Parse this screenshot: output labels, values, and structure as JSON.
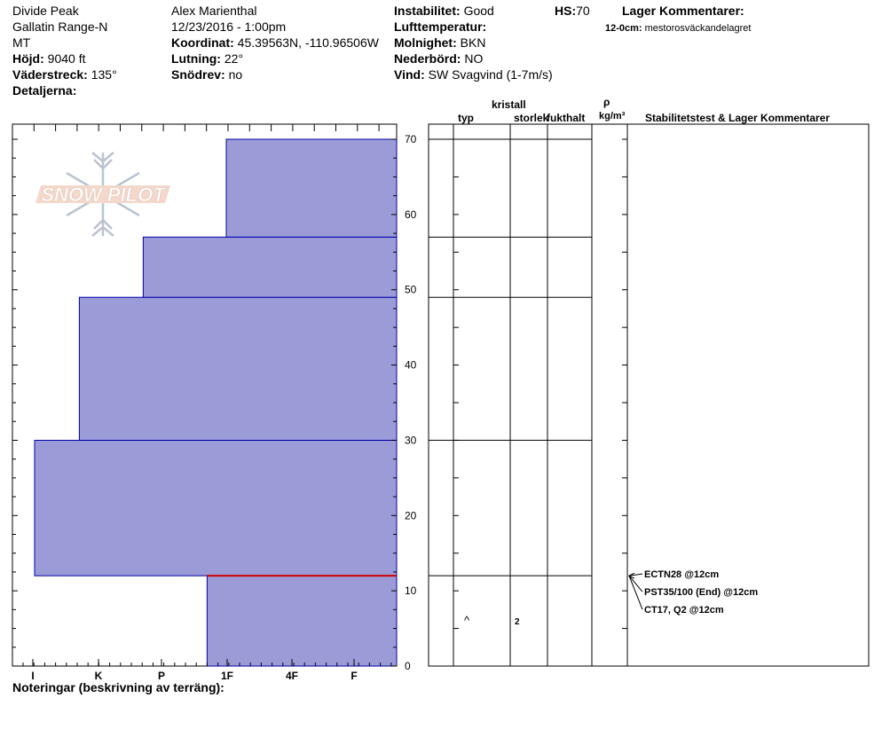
{
  "header": {
    "location": "Divide Peak",
    "range": "Gallatin Range-N",
    "state": "MT",
    "hojd_label": "Höjd:",
    "hojd_value": "9040 ft",
    "vaderstreck_label": "Väderstreck:",
    "vaderstreck_value": "135°",
    "detaljerna_label": "Detaljerna:",
    "observer": "Alex Marienthal",
    "datetime": "12/23/2016 - 1:00pm",
    "koordinat_label": "Koordinat:",
    "koordinat_value": "45.39563N, -110.96506W",
    "lutning_label": "Lutning:",
    "lutning_value": "22°",
    "snodrev_label": "Snödrev:",
    "snodrev_value": "no",
    "instabilitet_label": "Instabilitet:",
    "instabilitet_value": "Good",
    "lufttemp_label": "Lufttemperatur:",
    "molnighet_label": "Molnighet:",
    "molnighet_value": "BKN",
    "nederbord_label": "Nederbörd:",
    "nederbord_value": "NO",
    "vind_label": "Vind:",
    "vind_value": "SW  Svagvind (1-7m/s)",
    "hs_label": "HS:",
    "hs_value": "70",
    "lager_title": "Lager Kommentarer:",
    "lager_depth": "12-0cm:",
    "lager_text": "mestorosväckandelagret"
  },
  "logo": {
    "text": "SNOW PILOT"
  },
  "columns": {
    "typ": "typ",
    "kristall": "kristall",
    "storlek": "storlek",
    "fukthalt": "fukthalt",
    "rho": "ρ",
    "density_unit": "kg/m³",
    "stability": "Stabilitetstest & Lager Kommentarer"
  },
  "footer": {
    "notes_label": "Noteringar (beskrivning av terräng):"
  },
  "chart_data": {
    "type": "bar",
    "orientation": "horizontal",
    "hardness_scale": [
      "I",
      "K",
      "P",
      "1F",
      "4F",
      "F"
    ],
    "y_ticks": [
      "0",
      "10",
      "20",
      "30",
      "40",
      "50",
      "60",
      "70"
    ],
    "ylim": [
      0,
      70
    ],
    "layers": [
      {
        "bottom": 0,
        "top": 12,
        "hardness_index": 2.3
      },
      {
        "bottom": 12,
        "top": 30,
        "hardness_index": 5.0
      },
      {
        "bottom": 30,
        "top": 49,
        "hardness_index": 4.3
      },
      {
        "bottom": 49,
        "top": 57,
        "hardness_index": 3.3
      },
      {
        "bottom": 57,
        "top": 70,
        "hardness_index": 2.0
      }
    ],
    "weak_layer_height": 12,
    "grain_markers": [
      {
        "height": 6,
        "type": "^",
        "size": "2"
      }
    ],
    "stability_tests": [
      {
        "label": "ECTN28 @12cm"
      },
      {
        "label": "PST35/100 (End) @12cm"
      },
      {
        "label": "CT17, Q2 @12cm"
      }
    ],
    "colors": {
      "bar_fill": "#9b9bd8",
      "bar_stroke": "#0000aa",
      "weak_layer": "#cc0000"
    }
  }
}
